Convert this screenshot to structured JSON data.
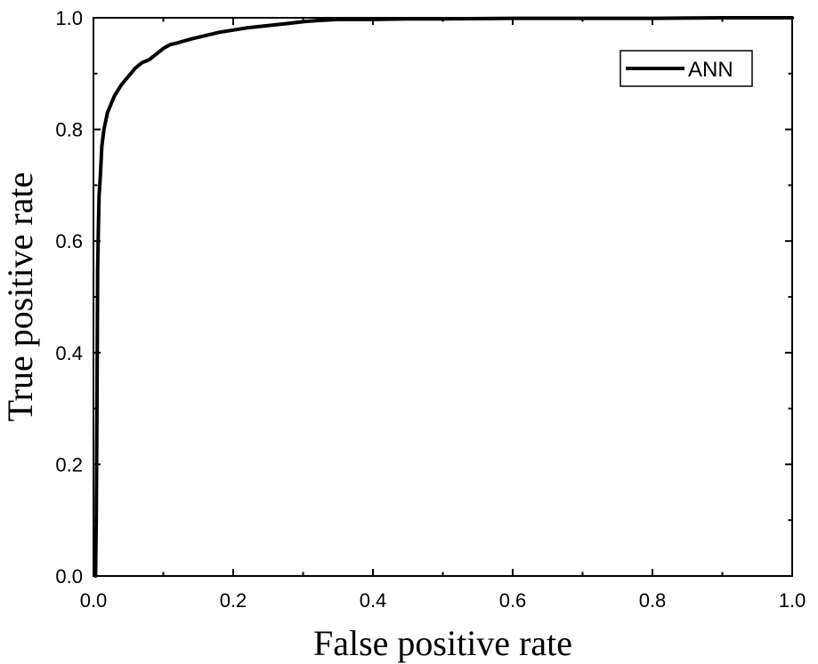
{
  "chart_data": {
    "type": "line",
    "xlabel": "False positive rate",
    "ylabel": "True positive rate",
    "xlim": [
      0,
      1
    ],
    "ylim": [
      0,
      1
    ],
    "x_ticks": [
      "0.0",
      "0.2",
      "0.4",
      "0.6",
      "0.8",
      "1.0"
    ],
    "y_ticks": [
      "0.0",
      "0.2",
      "0.4",
      "0.6",
      "0.8",
      "1.0"
    ],
    "grid": false,
    "legend_position": "top-right",
    "series": [
      {
        "name": "ANN",
        "color": "#000000",
        "x": [
          0.003,
          0.004,
          0.005,
          0.006,
          0.007,
          0.008,
          0.01,
          0.012,
          0.015,
          0.02,
          0.025,
          0.03,
          0.04,
          0.05,
          0.06,
          0.07,
          0.08,
          0.09,
          0.1,
          0.11,
          0.12,
          0.14,
          0.16,
          0.18,
          0.2,
          0.22,
          0.25,
          0.28,
          0.3,
          0.32,
          0.35,
          0.4,
          0.45,
          0.5,
          0.6,
          0.7,
          0.8,
          0.9,
          0.95,
          1.0
        ],
        "y": [
          0.0,
          0.1,
          0.3,
          0.55,
          0.62,
          0.68,
          0.72,
          0.77,
          0.8,
          0.83,
          0.845,
          0.86,
          0.88,
          0.895,
          0.91,
          0.92,
          0.925,
          0.935,
          0.945,
          0.952,
          0.955,
          0.962,
          0.968,
          0.974,
          0.978,
          0.982,
          0.986,
          0.99,
          0.993,
          0.995,
          0.997,
          0.997,
          0.998,
          0.998,
          0.999,
          0.999,
          0.999,
          1.0,
          1.0,
          1.0
        ]
      }
    ]
  }
}
